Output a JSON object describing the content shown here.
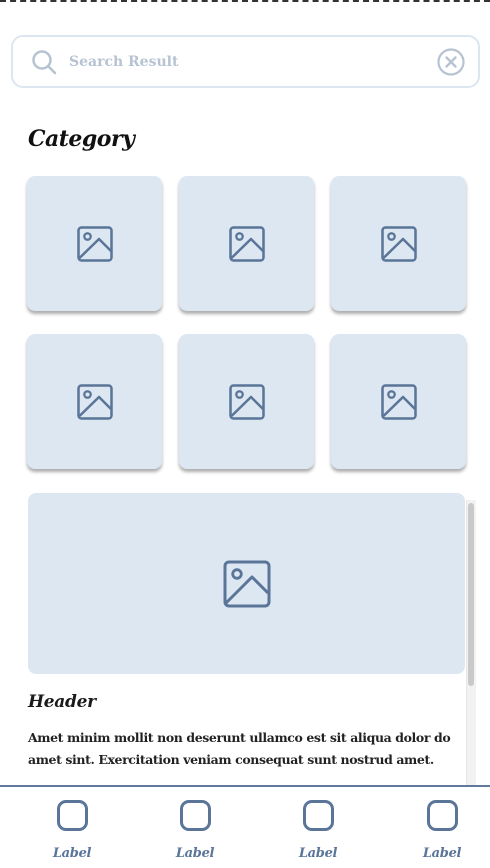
{
  "search": {
    "placeholder": "Search Result",
    "value": ""
  },
  "category": {
    "title": "Category",
    "tiles": [
      {
        "icon": "image-icon"
      },
      {
        "icon": "image-icon"
      },
      {
        "icon": "image-icon"
      },
      {
        "icon": "image-icon"
      },
      {
        "icon": "image-icon"
      },
      {
        "icon": "image-icon"
      }
    ]
  },
  "card": {
    "icon": "image-icon",
    "header": "Header",
    "body": "Amet minim mollit non deserunt ullamco est sit aliqua dolor do amet sint. Exercitation veniam consequat sunt nostrud amet."
  },
  "bottom_nav": {
    "items": [
      {
        "label": "Label",
        "icon": "rounded-square-icon"
      },
      {
        "label": "Label",
        "icon": "rounded-square-icon"
      },
      {
        "label": "Label",
        "icon": "rounded-square-icon"
      },
      {
        "label": "Label",
        "icon": "rounded-square-icon"
      }
    ]
  },
  "colors": {
    "tile_background": "#dce7f2",
    "icon_stroke": "#5a7598",
    "search_border": "#dbe6f1",
    "placeholder_text": "#b7c3d2"
  }
}
